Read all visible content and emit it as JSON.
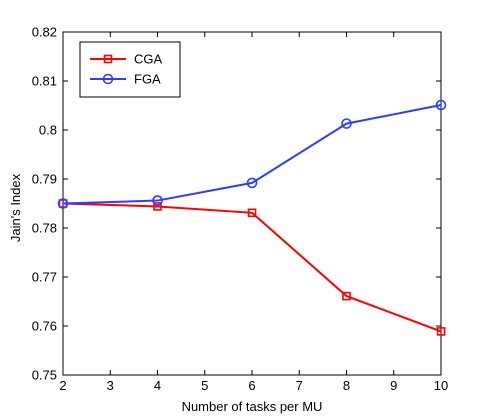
{
  "chart_data": {
    "type": "line",
    "title": "",
    "xlabel": "Number of tasks per MU",
    "ylabel": "Jain's Index",
    "xlim": [
      2,
      10
    ],
    "ylim": [
      0.75,
      0.82
    ],
    "xticks": [
      2,
      3,
      4,
      5,
      6,
      7,
      8,
      9,
      10
    ],
    "yticks": [
      0.75,
      0.76,
      0.77,
      0.78,
      0.79,
      0.8,
      0.81,
      0.82
    ],
    "ytick_labels": [
      "0.75",
      "0.76",
      "0.77",
      "0.78",
      "0.79",
      "0.8",
      "0.81",
      "0.82"
    ],
    "grid": false,
    "legend_position": "top-left",
    "series": [
      {
        "name": "CGA",
        "color": "#ff0000",
        "marker": "square",
        "x": [
          2,
          4,
          6,
          8,
          10
        ],
        "y": [
          0.785,
          0.7844,
          0.7831,
          0.7661,
          0.7589
        ]
      },
      {
        "name": "FGA",
        "color": "#2e3cff",
        "marker": "circle",
        "x": [
          2,
          4,
          6,
          8,
          10
        ],
        "y": [
          0.785,
          0.7856,
          0.7892,
          0.8013,
          0.8051
        ]
      }
    ]
  }
}
